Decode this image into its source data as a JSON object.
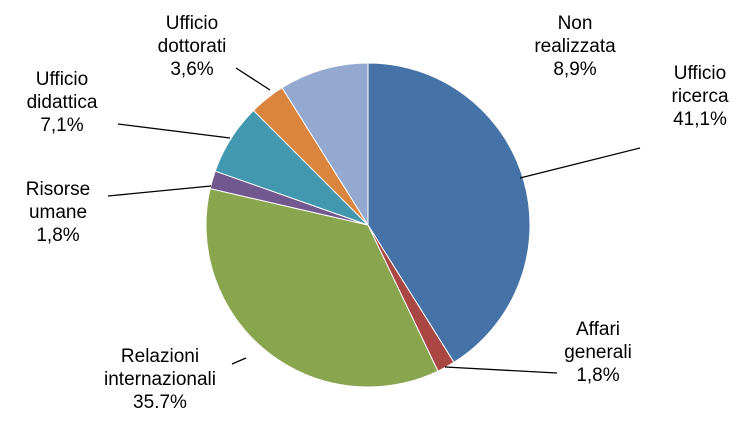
{
  "chart_data": {
    "type": "pie",
    "categories": [
      "Ufficio ricerca",
      "Affari generali",
      "Relazioni internazionali",
      "Risorse umane",
      "Ufficio didattica",
      "Ufficio dottorati",
      "Non realizzata"
    ],
    "values": [
      41.1,
      1.8,
      35.7,
      1.8,
      7.1,
      3.6,
      8.9
    ],
    "value_labels": [
      "41,1%",
      "1,8%",
      "35.7%",
      "1,8%",
      "7,1%",
      "3,6%",
      "8,9%"
    ],
    "colors": [
      "#4572a7",
      "#aa4643",
      "#89a54e",
      "#71588f",
      "#4198af",
      "#db843d",
      "#93a9cf"
    ]
  }
}
